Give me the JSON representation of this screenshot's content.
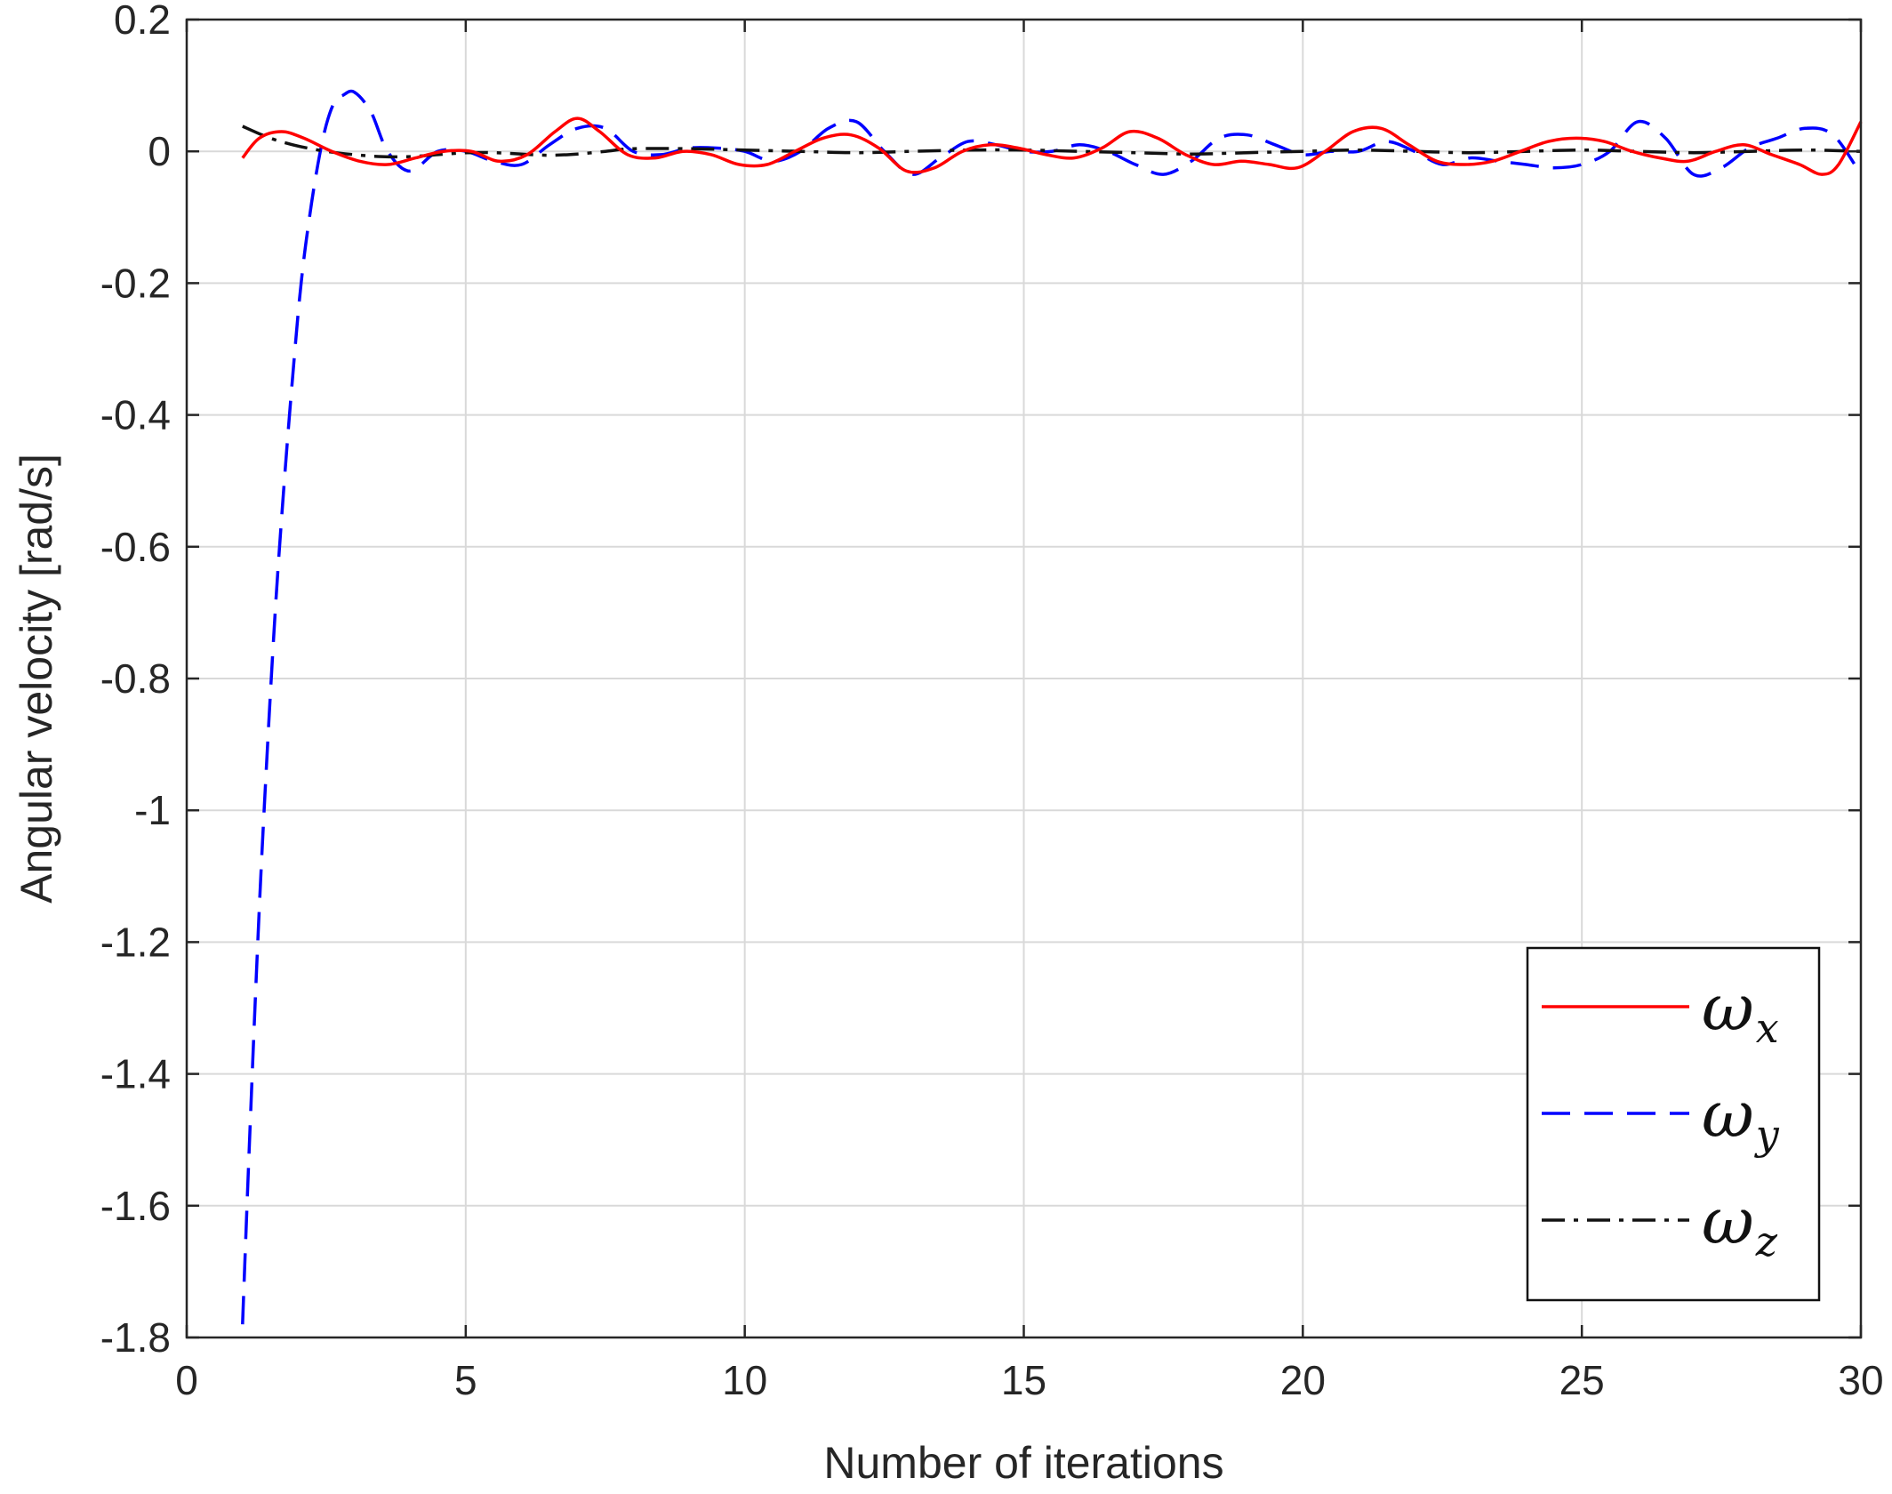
{
  "chart_data": {
    "type": "line",
    "title": "",
    "xlabel": "Number of iterations",
    "ylabel": "Angular velocity [rad/s]",
    "xlim": [
      0,
      30
    ],
    "ylim": [
      -1.8,
      0.2
    ],
    "xticks": [
      0,
      5,
      10,
      15,
      20,
      25,
      30
    ],
    "yticks": [
      0.2,
      0,
      -0.2,
      -0.4,
      -0.6,
      -0.8,
      -1,
      -1.2,
      -1.4,
      -1.6,
      -1.8
    ],
    "xtick_labels": [
      "0",
      "5",
      "10",
      "15",
      "20",
      "25",
      "30"
    ],
    "ytick_labels": [
      "0.2",
      "0",
      "-0.2",
      "-0.4",
      "-0.6",
      "-0.8",
      "-1",
      "-1.2",
      "-1.4",
      "-1.6",
      "-1.8"
    ],
    "grid": true,
    "legend_position": "bottom-right",
    "series": [
      {
        "name": "ωx",
        "legend_symbol": "ω",
        "legend_subscript": "x",
        "color": "#ff0000",
        "dash": "solid",
        "x": [
          1,
          1.3,
          1.7,
          2.1,
          2.6,
          3.1,
          3.6,
          4.1,
          4.6,
          5.1,
          5.6,
          6.1,
          6.6,
          7.0,
          7.4,
          7.9,
          8.4,
          8.9,
          9.4,
          9.9,
          10.4,
          10.9,
          11.4,
          11.9,
          12.4,
          12.9,
          13.4,
          13.9,
          14.4,
          14.9,
          15.4,
          15.9,
          16.4,
          16.9,
          17.4,
          17.9,
          18.4,
          18.9,
          19.4,
          19.9,
          20.4,
          20.9,
          21.4,
          21.9,
          22.4,
          22.9,
          23.4,
          23.9,
          24.4,
          24.9,
          25.4,
          25.9,
          26.4,
          26.9,
          27.4,
          27.9,
          28.4,
          28.9,
          29.3,
          29.6,
          30
        ],
        "y": [
          -0.01,
          0.02,
          0.03,
          0.02,
          0.0,
          -0.015,
          -0.02,
          -0.01,
          0.0,
          0.0,
          -0.015,
          -0.005,
          0.03,
          0.05,
          0.03,
          -0.005,
          -0.01,
          0.0,
          -0.005,
          -0.02,
          -0.02,
          0.0,
          0.02,
          0.025,
          0.005,
          -0.03,
          -0.025,
          0.0,
          0.01,
          0.005,
          -0.005,
          -0.01,
          0.005,
          0.03,
          0.02,
          -0.005,
          -0.02,
          -0.015,
          -0.02,
          -0.025,
          0.0,
          0.03,
          0.035,
          0.01,
          -0.015,
          -0.02,
          -0.015,
          0.0,
          0.015,
          0.02,
          0.015,
          0.0,
          -0.01,
          -0.015,
          0.0,
          0.01,
          -0.005,
          -0.02,
          -0.035,
          -0.02,
          0.045
        ]
      },
      {
        "name": "ωy",
        "legend_symbol": "ω",
        "legend_subscript": "y",
        "color": "#0000ff",
        "dash": "dashed",
        "x": [
          1,
          1.15,
          1.3,
          1.45,
          1.6,
          1.75,
          1.9,
          2.05,
          2.2,
          2.35,
          2.5,
          2.65,
          2.8,
          3.0,
          3.3,
          3.6,
          4.0,
          4.5,
          5.0,
          5.5,
          6.0,
          6.5,
          7.0,
          7.5,
          8.0,
          8.5,
          9.0,
          9.5,
          10.0,
          10.5,
          11.0,
          11.5,
          12.0,
          12.5,
          13.0,
          13.5,
          14.0,
          14.5,
          15.0,
          15.5,
          16.0,
          16.5,
          17.0,
          17.5,
          18.0,
          18.5,
          19.0,
          19.5,
          20.0,
          20.5,
          21.0,
          21.5,
          22.0,
          22.5,
          23.0,
          23.5,
          24.0,
          24.5,
          25.0,
          25.5,
          26.0,
          26.5,
          27.0,
          27.5,
          28.0,
          28.5,
          29.0,
          29.5,
          30.0
        ],
        "y": [
          -1.78,
          -1.45,
          -1.15,
          -0.9,
          -0.68,
          -0.5,
          -0.34,
          -0.2,
          -0.1,
          -0.02,
          0.04,
          0.075,
          0.085,
          0.09,
          0.06,
          0.0,
          -0.03,
          0.0,
          0.0,
          -0.015,
          -0.02,
          0.01,
          0.035,
          0.035,
          0.0,
          -0.005,
          0.005,
          0.005,
          0.0,
          -0.015,
          0.0,
          0.035,
          0.045,
          0.0,
          -0.035,
          -0.01,
          0.015,
          0.01,
          0.0,
          0.0,
          0.01,
          0.0,
          -0.02,
          -0.035,
          -0.015,
          0.02,
          0.025,
          0.01,
          -0.005,
          0.0,
          0.0,
          0.015,
          0.0,
          -0.02,
          -0.01,
          -0.015,
          -0.02,
          -0.025,
          -0.02,
          0.0,
          0.045,
          0.02,
          -0.035,
          -0.025,
          0.005,
          0.02,
          0.035,
          0.025,
          -0.035
        ]
      },
      {
        "name": "ωz",
        "legend_symbol": "ω",
        "legend_subscript": "z",
        "color": "#111111",
        "dash": "dashdot",
        "x": [
          1,
          1.5,
          2.0,
          2.5,
          3.0,
          3.5,
          4.0,
          4.5,
          5.0,
          5.5,
          6.0,
          6.5,
          7.0,
          7.5,
          8.0,
          9.0,
          10.0,
          11.0,
          12.0,
          13.0,
          14.0,
          15.0,
          16.0,
          17.0,
          18.0,
          19.0,
          20.0,
          21.0,
          22.0,
          23.0,
          24.0,
          25.0,
          26.0,
          27.0,
          28.0,
          29.0,
          30.0
        ],
        "y": [
          0.038,
          0.02,
          0.008,
          0.0,
          -0.005,
          -0.008,
          -0.008,
          -0.005,
          -0.002,
          -0.002,
          -0.004,
          -0.006,
          -0.004,
          0.0,
          0.004,
          0.004,
          0.002,
          0.0,
          -0.002,
          0.0,
          0.002,
          0.002,
          0.0,
          -0.002,
          -0.004,
          -0.002,
          0.0,
          0.002,
          0.0,
          -0.002,
          0.0,
          0.002,
          0.0,
          -0.002,
          0.0,
          0.002,
          0.0
        ]
      }
    ]
  }
}
